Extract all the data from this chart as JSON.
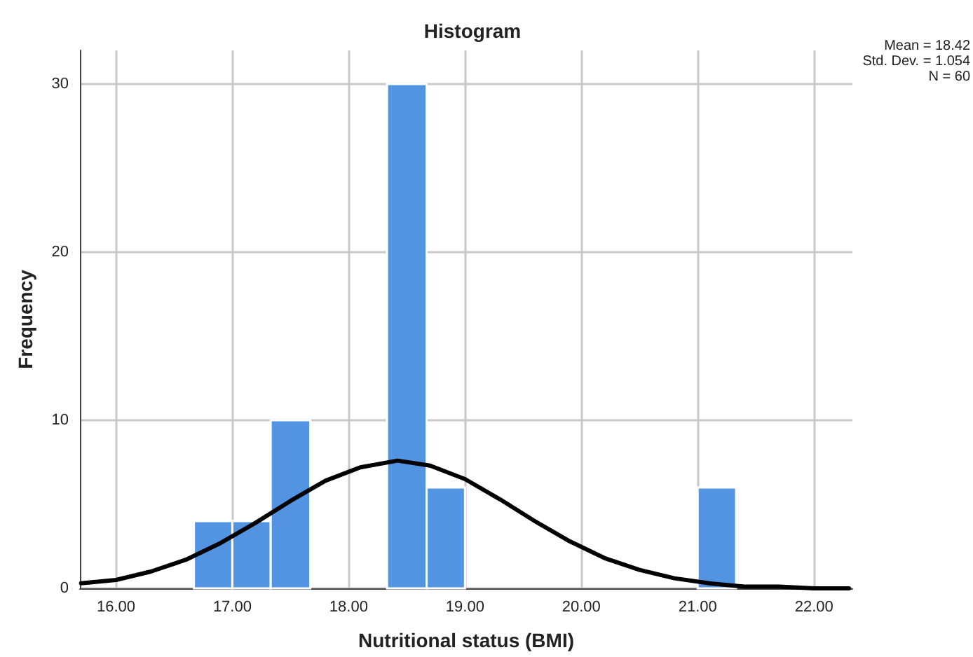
{
  "chart_data": {
    "type": "histogram",
    "title": "Histogram",
    "xlabel": "Nutritional status (BMI)",
    "ylabel": "Frequency",
    "bins": [
      16.67,
      17.0,
      17.33,
      17.67,
      18.33,
      18.67,
      19.0,
      21.0,
      21.33
    ],
    "values": [
      4,
      4,
      10,
      0,
      30,
      6,
      0,
      6
    ],
    "color": "#5294e2",
    "series": [
      {
        "type": "line",
        "color": "#000000",
        "x": [
          15.7,
          16.0,
          16.3,
          16.6,
          16.9,
          17.2,
          17.5,
          17.8,
          18.1,
          18.42,
          18.7,
          19.0,
          19.3,
          19.6,
          19.9,
          20.2,
          20.5,
          20.8,
          21.1,
          21.4,
          21.7,
          22.0,
          22.3
        ],
        "values": [
          0.3,
          0.5,
          1.0,
          1.7,
          2.7,
          3.9,
          5.2,
          6.4,
          7.2,
          7.6,
          7.3,
          6.5,
          5.3,
          4.0,
          2.8,
          1.8,
          1.1,
          0.6,
          0.3,
          0.1,
          0.1,
          0.0,
          0.0
        ]
      }
    ],
    "annotations": [
      "Mean = 18.42",
      "Std. Dev. = 1.054",
      "N = 60"
    ],
    "xlim": [
      15.69,
      22.33
    ],
    "ylim": [
      0,
      32
    ],
    "xticks": [
      {
        "value": 16,
        "label": "16.00"
      },
      {
        "value": 17,
        "label": "17.00"
      },
      {
        "value": 18,
        "label": "18.00"
      },
      {
        "value": 19,
        "label": "19.00"
      },
      {
        "value": 20,
        "label": "20.00"
      },
      {
        "value": 21,
        "label": "21.00"
      },
      {
        "value": 22,
        "label": "22.00"
      }
    ],
    "yticks": [
      0,
      10,
      20,
      30
    ],
    "grid": true,
    "marker": "none",
    "line_style": "solid"
  }
}
